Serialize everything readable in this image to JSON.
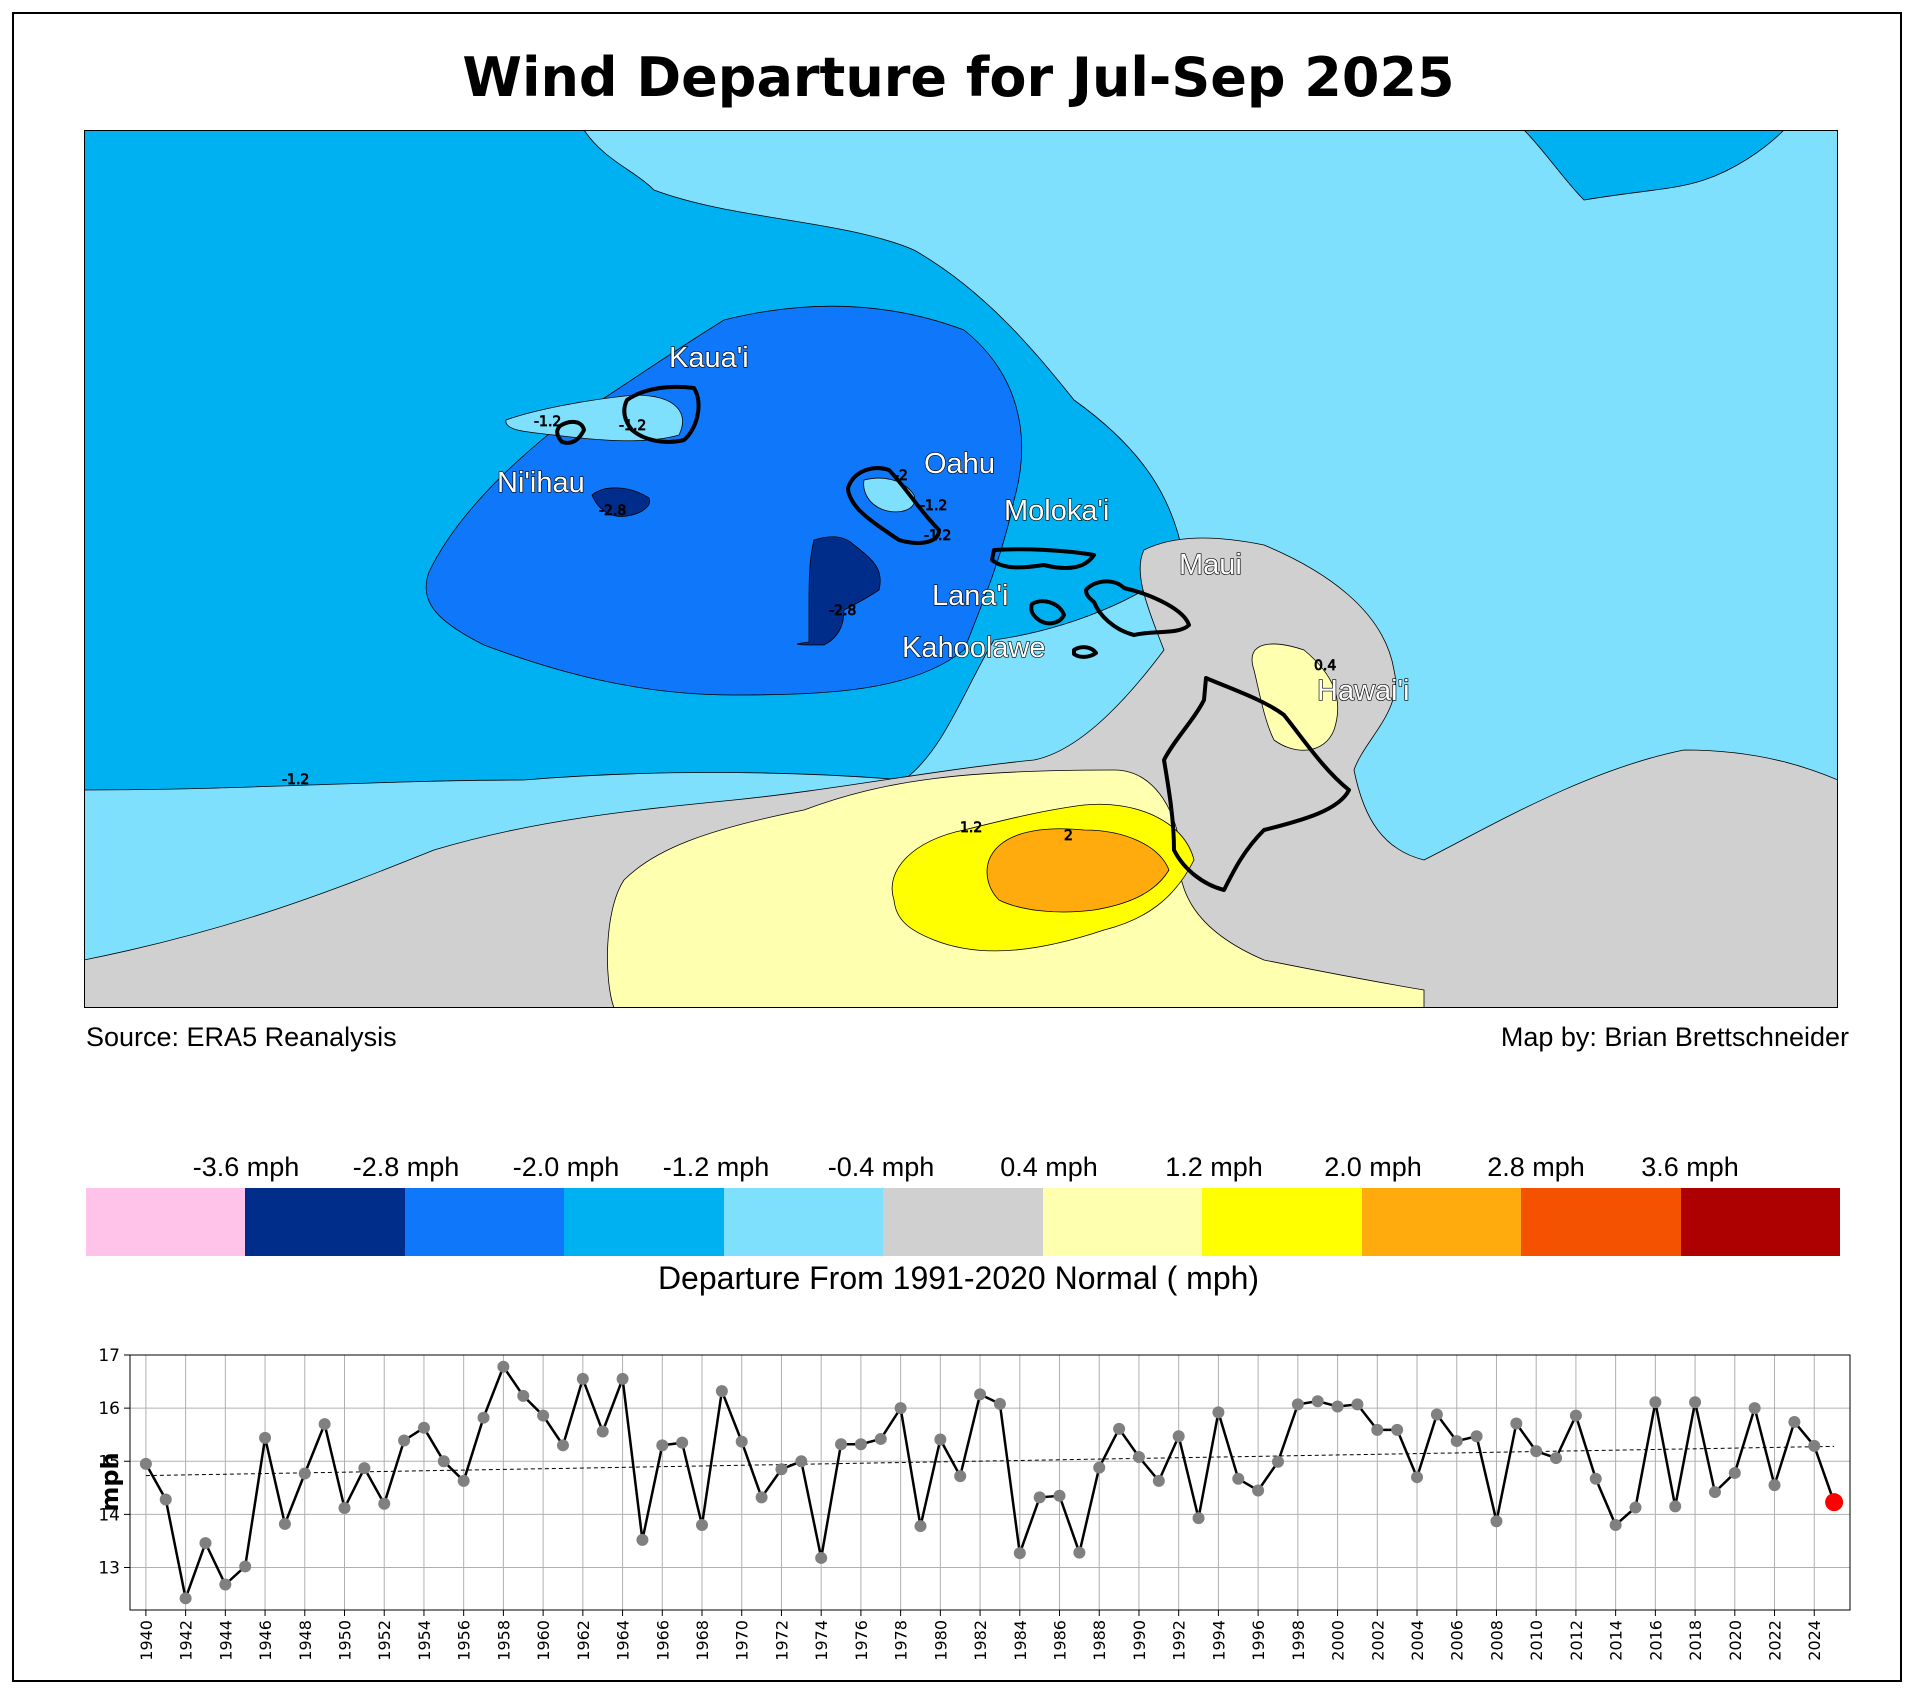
{
  "title": "Wind Departure for Jul-Sep 2025",
  "source": "Source: ERA5 Reanalysis",
  "author": "Map by: Brian Brettschneider",
  "map": {
    "islands": [
      {
        "id": "kauai",
        "label": "Kaua'i"
      },
      {
        "id": "niihau",
        "label": "Ni'ihau"
      },
      {
        "id": "oahu",
        "label": "Oahu"
      },
      {
        "id": "molokai",
        "label": "Moloka'i"
      },
      {
        "id": "maui",
        "label": "Maui"
      },
      {
        "id": "lanai",
        "label": "Lana'i"
      },
      {
        "id": "kahoolawe",
        "label": "Kahoolawe"
      },
      {
        "id": "hawaii",
        "label": "Hawai'i"
      }
    ],
    "contour_labels": [
      "-1.2",
      "-1.2",
      "-1.2",
      "-2.8",
      "-2.8",
      "-1.2",
      "-2",
      "-1.2",
      "1.2",
      "2",
      "0.4"
    ],
    "level_colors": [
      "#ffc3ea",
      "#002c8a",
      "#0f78fa",
      "#00b1f1",
      "#7ee0fd",
      "#d0d0d0",
      "#ffffb0",
      "#ffff00",
      "#ffab0e",
      "#f55200",
      "#ad0000"
    ]
  },
  "colorbar": {
    "ticks": [
      "-3.6 mph",
      "-2.8 mph",
      "-2.0 mph",
      "-1.2 mph",
      "-0.4 mph",
      "0.4 mph",
      "1.2 mph",
      "2.0 mph",
      "2.8 mph",
      "3.6 mph"
    ],
    "label": "Departure From 1991-2020 Normal ( mph)"
  },
  "chart_data": {
    "type": "line",
    "ylabel": "mph",
    "ylim": [
      12.2,
      17.0
    ],
    "xlim": [
      1939.2,
      2025.8
    ],
    "yticks": [
      13,
      14,
      15,
      16,
      17
    ],
    "xticks": [
      1940,
      1942,
      1944,
      1946,
      1948,
      1950,
      1952,
      1954,
      1956,
      1958,
      1960,
      1962,
      1964,
      1966,
      1968,
      1970,
      1972,
      1974,
      1976,
      1978,
      1980,
      1982,
      1984,
      1986,
      1988,
      1990,
      1992,
      1994,
      1996,
      1998,
      2000,
      2002,
      2004,
      2006,
      2008,
      2010,
      2012,
      2014,
      2016,
      2018,
      2020,
      2022,
      2024
    ],
    "grid": true,
    "x": [
      1940,
      1941,
      1942,
      1943,
      1944,
      1945,
      1946,
      1947,
      1948,
      1949,
      1950,
      1951,
      1952,
      1953,
      1954,
      1955,
      1956,
      1957,
      1958,
      1959,
      1960,
      1961,
      1962,
      1963,
      1964,
      1965,
      1966,
      1967,
      1968,
      1969,
      1970,
      1971,
      1972,
      1973,
      1974,
      1975,
      1976,
      1977,
      1978,
      1979,
      1980,
      1981,
      1982,
      1983,
      1984,
      1985,
      1986,
      1987,
      1988,
      1989,
      1990,
      1991,
      1992,
      1993,
      1994,
      1995,
      1996,
      1997,
      1998,
      1999,
      2000,
      2001,
      2002,
      2003,
      2004,
      2005,
      2006,
      2007,
      2008,
      2009,
      2010,
      2011,
      2012,
      2013,
      2014,
      2015,
      2016,
      2017,
      2018,
      2019,
      2020,
      2021,
      2022,
      2023,
      2024,
      2025
    ],
    "values": [
      14.95,
      14.28,
      12.42,
      13.46,
      12.68,
      13.02,
      15.44,
      13.82,
      14.77,
      15.7,
      14.12,
      14.87,
      14.2,
      15.39,
      15.63,
      15.0,
      14.63,
      15.82,
      16.78,
      16.23,
      15.86,
      15.3,
      16.55,
      15.56,
      16.55,
      13.52,
      15.3,
      15.35,
      13.8,
      16.32,
      15.37,
      14.32,
      14.85,
      15.0,
      13.18,
      15.32,
      15.32,
      15.42,
      16.0,
      13.78,
      15.41,
      14.72,
      16.26,
      16.08,
      13.27,
      14.32,
      14.35,
      13.28,
      14.88,
      15.61,
      15.08,
      14.63,
      15.47,
      13.93,
      15.92,
      14.67,
      14.45,
      14.99,
      16.07,
      16.13,
      16.03,
      16.07,
      15.59,
      15.59,
      14.7,
      15.88,
      15.38,
      15.47,
      13.87,
      15.71,
      15.19,
      15.06,
      15.86,
      14.67,
      13.8,
      14.13,
      16.11,
      14.15,
      16.11,
      14.42,
      14.78,
      16.0,
      14.55,
      15.74,
      15.29,
      14.23
    ],
    "trend": {
      "start": [
        1940,
        14.73
      ],
      "end": [
        2025,
        15.28
      ]
    },
    "highlight": {
      "x": 2025,
      "value": 14.23,
      "color": "#ff0000"
    },
    "line_color": "#000000",
    "marker_color": "#808080"
  }
}
